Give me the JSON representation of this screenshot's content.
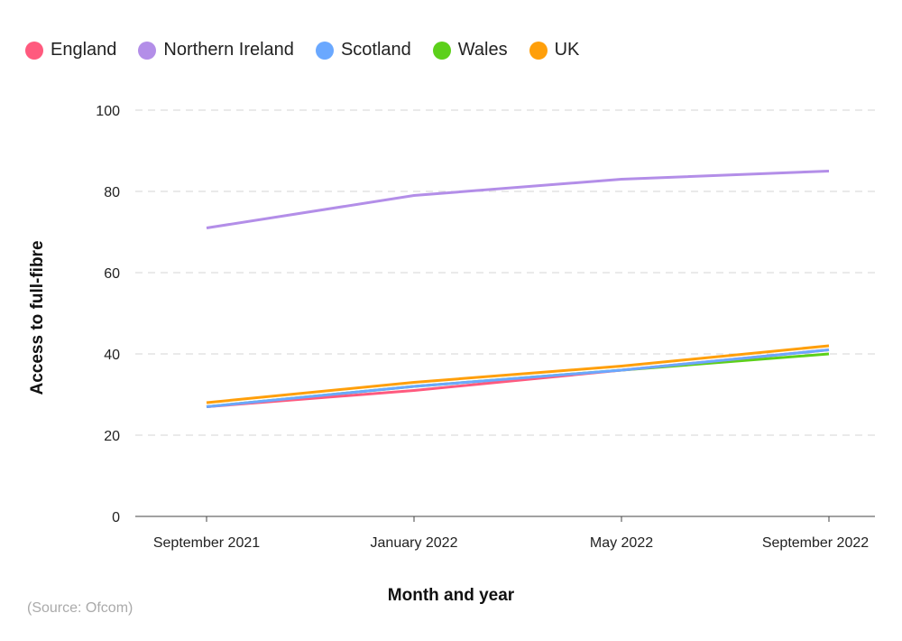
{
  "chart_data": {
    "type": "line",
    "categories": [
      "September 2021",
      "January 2022",
      "May 2022",
      "September 2022"
    ],
    "series": [
      {
        "name": "England",
        "color": "#ff5a7e",
        "values": [
          27,
          31,
          36,
          41
        ]
      },
      {
        "name": "Northern Ireland",
        "color": "#b38ee8",
        "values": [
          71,
          79,
          83,
          85
        ]
      },
      {
        "name": "Scotland",
        "color": "#6aa8ff",
        "values": [
          27,
          32,
          36,
          41
        ]
      },
      {
        "name": "Wales",
        "color": "#5cd01a",
        "values": [
          27,
          32,
          36,
          40
        ]
      },
      {
        "name": "UK",
        "color": "#ff9f0a",
        "values": [
          28,
          33,
          37,
          42
        ]
      }
    ],
    "xlabel": "Month and year",
    "ylabel": "Access to full-fibre",
    "ylim": [
      0,
      100
    ],
    "yticks": [
      0,
      20,
      40,
      60,
      80,
      100
    ],
    "grid": true,
    "legend": "top-left"
  },
  "source": "(Source: Ofcom)"
}
